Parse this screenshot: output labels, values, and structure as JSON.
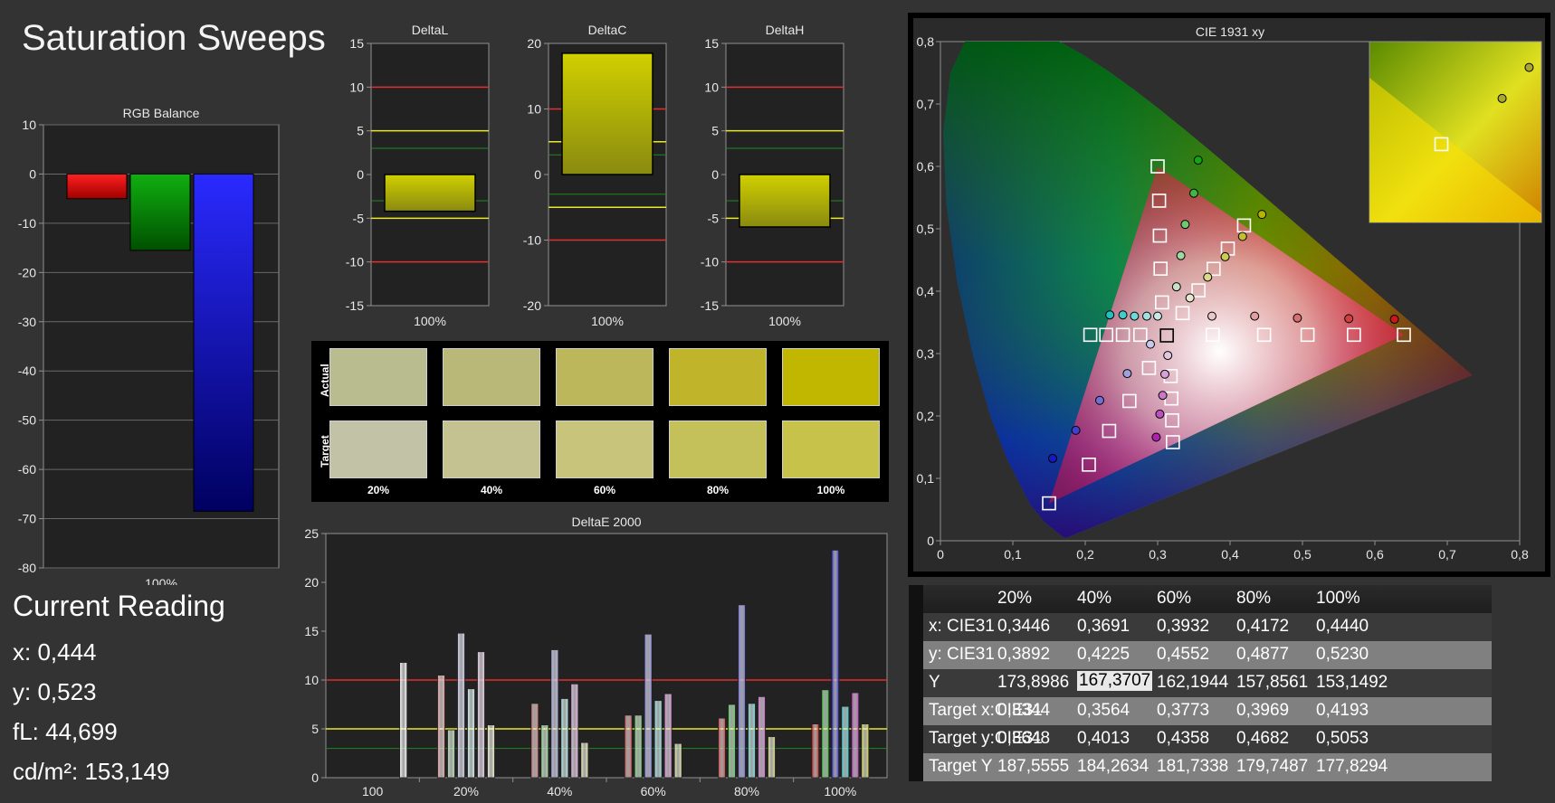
{
  "page": {
    "title": "Saturation Sweeps"
  },
  "current_reading": {
    "heading": "Current Reading",
    "x": "x: 0,444",
    "y": "y: 0,523",
    "fl": "fL: 44,699",
    "cdm2": "cd/m²: 153,149"
  },
  "swatches": {
    "row_actual": "Actual",
    "row_target": "Target",
    "labels": [
      "20%",
      "40%",
      "60%",
      "80%",
      "100%"
    ],
    "actual_colors": [
      "#b8bc8e",
      "#b9b878",
      "#bdb75c",
      "#bfb42a",
      "#c1b600"
    ],
    "target_colors": [
      "#c2c2a6",
      "#c5c292",
      "#c8c47c",
      "#c4c15a",
      "#c6c24a"
    ]
  },
  "table": {
    "columns": [
      "20%",
      "40%",
      "60%",
      "80%",
      "100%"
    ],
    "rows": [
      {
        "label": "x: CIE31",
        "values": [
          "0,3446",
          "0,3691",
          "0,3932",
          "0,4172",
          "0,4440"
        ]
      },
      {
        "label": "y: CIE31",
        "values": [
          "0,3892",
          "0,4225",
          "0,4552",
          "0,4877",
          "0,5230"
        ]
      },
      {
        "label": "Y",
        "values": [
          "173,8986",
          "167,3707",
          "162,1944",
          "157,8561",
          "153,1492"
        ]
      },
      {
        "label": "Target x:CIE31",
        "values": [
          "0,3344",
          "0,3564",
          "0,3773",
          "0,3969",
          "0,4193"
        ]
      },
      {
        "label": "Target y:CIE31",
        "values": [
          "0,3648",
          "0,4013",
          "0,4358",
          "0,4682",
          "0,5053"
        ]
      },
      {
        "label": "Target Y",
        "values": [
          "187,5555",
          "184,2634",
          "181,7338",
          "179,7487",
          "177,8294"
        ]
      }
    ]
  },
  "chart_data": [
    {
      "type": "bar",
      "title": "RGB Balance",
      "categories": [
        "100%"
      ],
      "series": [
        {
          "name": "R",
          "values": [
            -5
          ],
          "color": "#ff0000"
        },
        {
          "name": "G",
          "values": [
            -15.5
          ],
          "color": "#00a000"
        },
        {
          "name": "B",
          "values": [
            -68.5
          ],
          "color": "#2020ff"
        }
      ],
      "ylim": [
        -80,
        10
      ],
      "yticks": [
        "10",
        "0",
        "-10",
        "-20",
        "-30",
        "-40",
        "-50",
        "-60",
        "-70",
        "-80"
      ],
      "grid": true
    },
    {
      "type": "bar",
      "title": "DeltaL",
      "categories": [
        "100%"
      ],
      "values": [
        -4.2
      ],
      "ylim": [
        -15,
        15
      ],
      "yticks": [
        "15",
        "10",
        "5",
        "0",
        "-5",
        "-10",
        "-15"
      ],
      "reference_lines": {
        "red": [
          10,
          -10
        ],
        "yellow": [
          5,
          -5
        ],
        "green": [
          3,
          -3
        ]
      }
    },
    {
      "type": "bar",
      "title": "DeltaC",
      "categories": [
        "100%"
      ],
      "values": [
        18.5
      ],
      "ylim": [
        -20,
        20
      ],
      "yticks": [
        "20",
        "10",
        "0",
        "-10",
        "-20"
      ],
      "reference_lines": {
        "red": [
          10,
          -10
        ],
        "yellow": [
          5,
          -5
        ],
        "green": [
          3,
          -3
        ]
      }
    },
    {
      "type": "bar",
      "title": "DeltaH",
      "categories": [
        "100%"
      ],
      "values": [
        -6
      ],
      "ylim": [
        -15,
        15
      ],
      "yticks": [
        "15",
        "10",
        "5",
        "0",
        "-5",
        "-10",
        "-15"
      ],
      "reference_lines": {
        "red": [
          10,
          -10
        ],
        "yellow": [
          5,
          -5
        ],
        "green": [
          3,
          -3
        ]
      }
    },
    {
      "type": "bar",
      "title": "DeltaE 2000",
      "categories": [
        "100",
        "20%",
        "40%",
        "60%",
        "80%",
        "100%"
      ],
      "ylim": [
        0,
        25
      ],
      "yticks": [
        "25",
        "20",
        "15",
        "10",
        "5",
        "0"
      ],
      "reference_lines": {
        "red": [
          10
        ],
        "yellow": [
          5
        ],
        "green": [
          3
        ]
      },
      "groups": [
        [
          {
            "v": 11.8,
            "c": "#ffffff"
          }
        ],
        [
          {
            "v": 10.5,
            "c": "#e89c9c"
          },
          {
            "v": 4.9,
            "c": "#a8d8a8"
          },
          {
            "v": 14.8,
            "c": "#c8c8f0"
          },
          {
            "v": 9.1,
            "c": "#c8f0f0"
          },
          {
            "v": 12.9,
            "c": "#e8c8e8"
          },
          {
            "v": 5.4,
            "c": "#f0f0c8"
          }
        ],
        [
          {
            "v": 7.6,
            "c": "#d07070"
          },
          {
            "v": 5.4,
            "c": "#90d890"
          },
          {
            "v": 13.1,
            "c": "#a8a8e8"
          },
          {
            "v": 8.1,
            "c": "#a8e8e8"
          },
          {
            "v": 9.6,
            "c": "#e0a8e0"
          },
          {
            "v": 3.6,
            "c": "#e8e8b0"
          }
        ],
        [
          {
            "v": 6.4,
            "c": "#d05050"
          },
          {
            "v": 6.4,
            "c": "#70d070"
          },
          {
            "v": 14.7,
            "c": "#8888e8"
          },
          {
            "v": 7.9,
            "c": "#88e0e0"
          },
          {
            "v": 8.6,
            "c": "#d888d8"
          },
          {
            "v": 3.5,
            "c": "#e0e098"
          }
        ],
        [
          {
            "v": 6.1,
            "c": "#d03030"
          },
          {
            "v": 7.5,
            "c": "#50c850"
          },
          {
            "v": 17.7,
            "c": "#6868e0"
          },
          {
            "v": 7.6,
            "c": "#68d8d8"
          },
          {
            "v": 8.3,
            "c": "#d068d0"
          },
          {
            "v": 4.2,
            "c": "#d8d878"
          }
        ],
        [
          {
            "v": 5.5,
            "c": "#d01010"
          },
          {
            "v": 9.0,
            "c": "#30c030"
          },
          {
            "v": 23.3,
            "c": "#2020d8"
          },
          {
            "v": 7.3,
            "c": "#30d0d0"
          },
          {
            "v": 8.7,
            "c": "#c030c0"
          },
          {
            "v": 5.5,
            "c": "#d8d848"
          }
        ]
      ]
    },
    {
      "type": "scatter",
      "title": "CIE 1931 xy",
      "xlim": [
        0,
        0.8
      ],
      "ylim": [
        0,
        0.8
      ],
      "xticks": [
        "0",
        "0,1",
        "0,2",
        "0,3",
        "0,4",
        "0,5",
        "0,6",
        "0,7",
        "0,8"
      ],
      "yticks": [
        "0,8",
        "0,7",
        "0,6",
        "0,5",
        "0,4",
        "0,3",
        "0,2",
        "0,1",
        "0"
      ],
      "gamut_triangle": [
        [
          0.64,
          0.33
        ],
        [
          0.3,
          0.6
        ],
        [
          0.15,
          0.06
        ]
      ],
      "white_point": [
        0.3127,
        0.329
      ],
      "targets": [
        [
          0.3344,
          0.3648
        ],
        [
          0.3564,
          0.4013
        ],
        [
          0.3773,
          0.4358
        ],
        [
          0.3969,
          0.4682
        ],
        [
          0.4193,
          0.5053
        ],
        [
          0.306,
          0.382
        ],
        [
          0.304,
          0.436
        ],
        [
          0.303,
          0.489
        ],
        [
          0.302,
          0.545
        ],
        [
          0.3,
          0.6
        ],
        [
          0.276,
          0.33
        ],
        [
          0.252,
          0.33
        ],
        [
          0.229,
          0.33
        ],
        [
          0.207,
          0.33
        ],
        [
          0.288,
          0.277
        ],
        [
          0.261,
          0.224
        ],
        [
          0.233,
          0.176
        ],
        [
          0.205,
          0.122
        ],
        [
          0.15,
          0.06
        ],
        [
          0.318,
          0.264
        ],
        [
          0.319,
          0.228
        ],
        [
          0.32,
          0.193
        ],
        [
          0.321,
          0.158
        ],
        [
          0.376,
          0.33
        ],
        [
          0.447,
          0.33
        ],
        [
          0.507,
          0.33
        ],
        [
          0.571,
          0.33
        ],
        [
          0.64,
          0.33
        ]
      ],
      "measured": [
        {
          "x": 0.3446,
          "y": 0.3892,
          "c": "#e6e6d2"
        },
        {
          "x": 0.3691,
          "y": 0.4225,
          "c": "#d9d98c"
        },
        {
          "x": 0.3932,
          "y": 0.4552,
          "c": "#cccc55"
        },
        {
          "x": 0.4172,
          "y": 0.4877,
          "c": "#c0c030"
        },
        {
          "x": 0.444,
          "y": 0.523,
          "c": "#b5b500"
        },
        {
          "x": 0.326,
          "y": 0.407,
          "c": "#c8e0c8"
        },
        {
          "x": 0.332,
          "y": 0.457,
          "c": "#a0d8a0"
        },
        {
          "x": 0.338,
          "y": 0.507,
          "c": "#70c870"
        },
        {
          "x": 0.35,
          "y": 0.557,
          "c": "#40b840"
        },
        {
          "x": 0.356,
          "y": 0.61,
          "c": "#10a810"
        },
        {
          "x": 0.3,
          "y": 0.36,
          "c": "#c8e8e8"
        },
        {
          "x": 0.285,
          "y": 0.36,
          "c": "#a0e0e0"
        },
        {
          "x": 0.268,
          "y": 0.36,
          "c": "#70d8d8"
        },
        {
          "x": 0.252,
          "y": 0.362,
          "c": "#40cccc"
        },
        {
          "x": 0.234,
          "y": 0.362,
          "c": "#20c0c0"
        },
        {
          "x": 0.29,
          "y": 0.315,
          "c": "#c8c8e8"
        },
        {
          "x": 0.258,
          "y": 0.268,
          "c": "#a0a0e0"
        },
        {
          "x": 0.22,
          "y": 0.225,
          "c": "#7070d8"
        },
        {
          "x": 0.187,
          "y": 0.177,
          "c": "#4040cc"
        },
        {
          "x": 0.155,
          "y": 0.132,
          "c": "#1818c0"
        },
        {
          "x": 0.314,
          "y": 0.297,
          "c": "#e0c8e0"
        },
        {
          "x": 0.31,
          "y": 0.267,
          "c": "#d8a0d8"
        },
        {
          "x": 0.307,
          "y": 0.233,
          "c": "#c878c8"
        },
        {
          "x": 0.303,
          "y": 0.203,
          "c": "#c050c0"
        },
        {
          "x": 0.298,
          "y": 0.166,
          "c": "#b020b0"
        },
        {
          "x": 0.375,
          "y": 0.36,
          "c": "#e8c8c8"
        },
        {
          "x": 0.434,
          "y": 0.36,
          "c": "#e0a0a0"
        },
        {
          "x": 0.493,
          "y": 0.357,
          "c": "#d87070"
        },
        {
          "x": 0.564,
          "y": 0.356,
          "c": "#d04040"
        },
        {
          "x": 0.627,
          "y": 0.355,
          "c": "#c81818"
        }
      ],
      "inset_marks": [
        {
          "shape": "square",
          "x": 0.4193,
          "y": 0.5053
        },
        {
          "shape": "circle",
          "x": 0.444,
          "y": 0.523
        },
        {
          "shape": "circle",
          "x": 0.455,
          "y": 0.535
        }
      ]
    }
  ]
}
